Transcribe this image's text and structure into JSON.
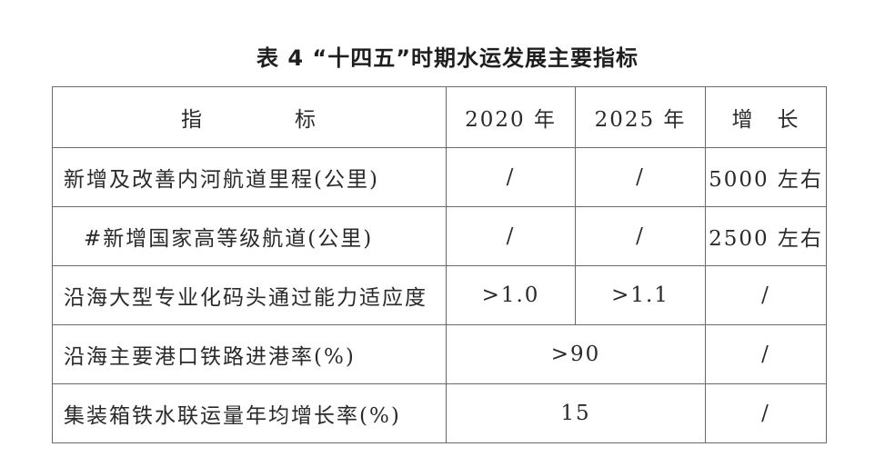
{
  "title": "表 4 “十四五”时期水运发展主要指标",
  "header": {
    "indicator": "指　　　　标",
    "y2020": "2020 年",
    "y2025": "2025 年",
    "growth": "增　长"
  },
  "rows": [
    {
      "indicator": "新增及改善内河航道里程(公里)",
      "y2020": "/",
      "y2025": "/",
      "growth": "5000 左右"
    },
    {
      "indicator": "#新增国家高等级航道(公里)",
      "y2020": "/",
      "y2025": "/",
      "growth": "2500 左右"
    },
    {
      "indicator": "沿海大型专业化码头通过能力适应度",
      "y2020": ">1.0",
      "y2025": ">1.1",
      "growth": "/"
    },
    {
      "indicator": "沿海主要港口铁路进港率(%)",
      "merged": ">90",
      "growth": "/"
    },
    {
      "indicator": "集装箱铁水联运量年均增长率(%)",
      "merged": "15",
      "growth": "/"
    }
  ]
}
